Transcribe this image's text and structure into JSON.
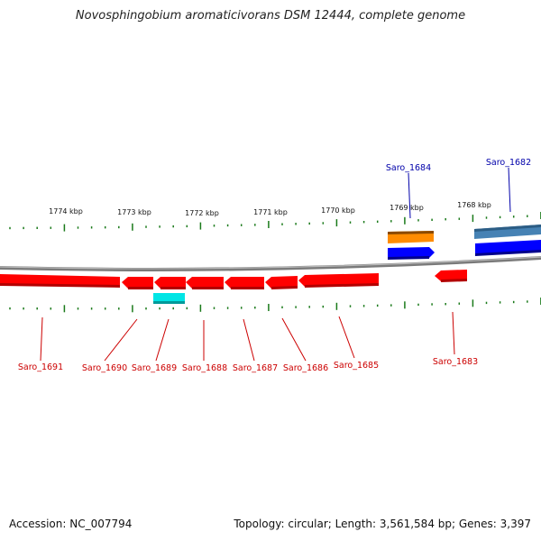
{
  "title": "Novosphingobium aromaticivorans DSM 12444, complete genome",
  "footer": {
    "accession": "Accession: NC_007794",
    "info": "Topology: circular; Length: 3,561,584 bp; Genes: 3,397"
  },
  "ticks": [
    {
      "label": "1774 kbp"
    },
    {
      "label": "1773 kbp"
    },
    {
      "label": "1772 kbp"
    },
    {
      "label": "1771 kbp"
    },
    {
      "label": "1770 kbp"
    },
    {
      "label": "1769 kbp"
    },
    {
      "label": "1768 kbp"
    }
  ],
  "genes": [
    {
      "label": "Saro_1691",
      "strand": "minus",
      "color": "#ff0000"
    },
    {
      "label": "Saro_1690",
      "strand": "minus",
      "color": "#ff0000"
    },
    {
      "label": "Saro_1689",
      "strand": "minus",
      "color": "#ff0000"
    },
    {
      "label": "Saro_1688",
      "strand": "minus",
      "color": "#ff0000"
    },
    {
      "label": "Saro_1687",
      "strand": "minus",
      "color": "#ff0000"
    },
    {
      "label": "Saro_1686",
      "strand": "minus",
      "color": "#ff0000"
    },
    {
      "label": "Saro_1685",
      "strand": "minus",
      "color": "#ff0000"
    },
    {
      "label": "Saro_1684",
      "strand": "plus",
      "color": "#0000ff"
    },
    {
      "label": "Saro_1683",
      "strand": "minus",
      "color": "#ff0000"
    },
    {
      "label": "Saro_1682",
      "strand": "plus",
      "color": "#0000ff"
    }
  ],
  "colors": {
    "minus_gene": "#ff0000",
    "plus_gene": "#0000ff",
    "rna_feature": "#00e5e5",
    "orange_feature": "#ff8c00",
    "steelblue_feature": "#4682b4",
    "tick_green": "#1a7a1a",
    "backbone": "#888888",
    "plus_label": "#0000aa",
    "minus_label": "#cc0000"
  }
}
